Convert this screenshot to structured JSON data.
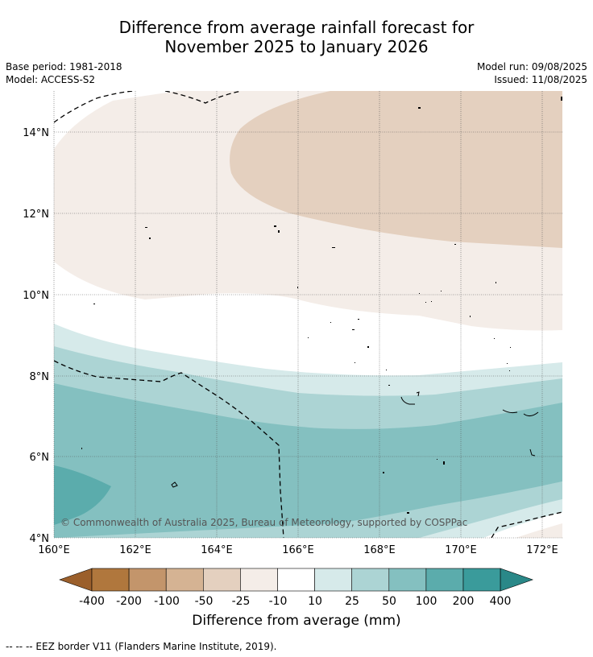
{
  "header": {
    "title_line1": "Difference from average rainfall forecast for",
    "title_line2": "November 2025 to January 2026",
    "base_period": "Base period: 1981-2018",
    "model": "Model: ACCESS-S2",
    "model_run": "Model run: 09/08/2025",
    "issued": "Issued: 11/08/2025"
  },
  "map": {
    "lon_labels": [
      "160°E",
      "162°E",
      "164°E",
      "166°E",
      "168°E",
      "170°E",
      "172°E"
    ],
    "lat_labels": [
      "14°N",
      "12°N",
      "10°N",
      "8°N",
      "6°N",
      "4°N"
    ],
    "copyright": "© Commonwealth of Australia 2025, Bureau of Meteorology, supported by COSPPac"
  },
  "colorbar": {
    "title": "Difference from average (mm)",
    "labels": [
      "-400",
      "-200",
      "-100",
      "-50",
      "-25",
      "-10",
      "10",
      "25",
      "50",
      "100",
      "200",
      "400"
    ],
    "colors": [
      "#9b5f2b",
      "#b0773d",
      "#c3956b",
      "#d5b393",
      "#e4d0bf",
      "#f4ede8",
      "#ffffff",
      "#d6eaea",
      "#acd4d4",
      "#84c0c0",
      "#5bacac",
      "#3a9b9b",
      "#2a8888"
    ]
  },
  "footnote": "--  --  -- EEZ border V11 (Flanders Marine Institute, 2019)."
}
